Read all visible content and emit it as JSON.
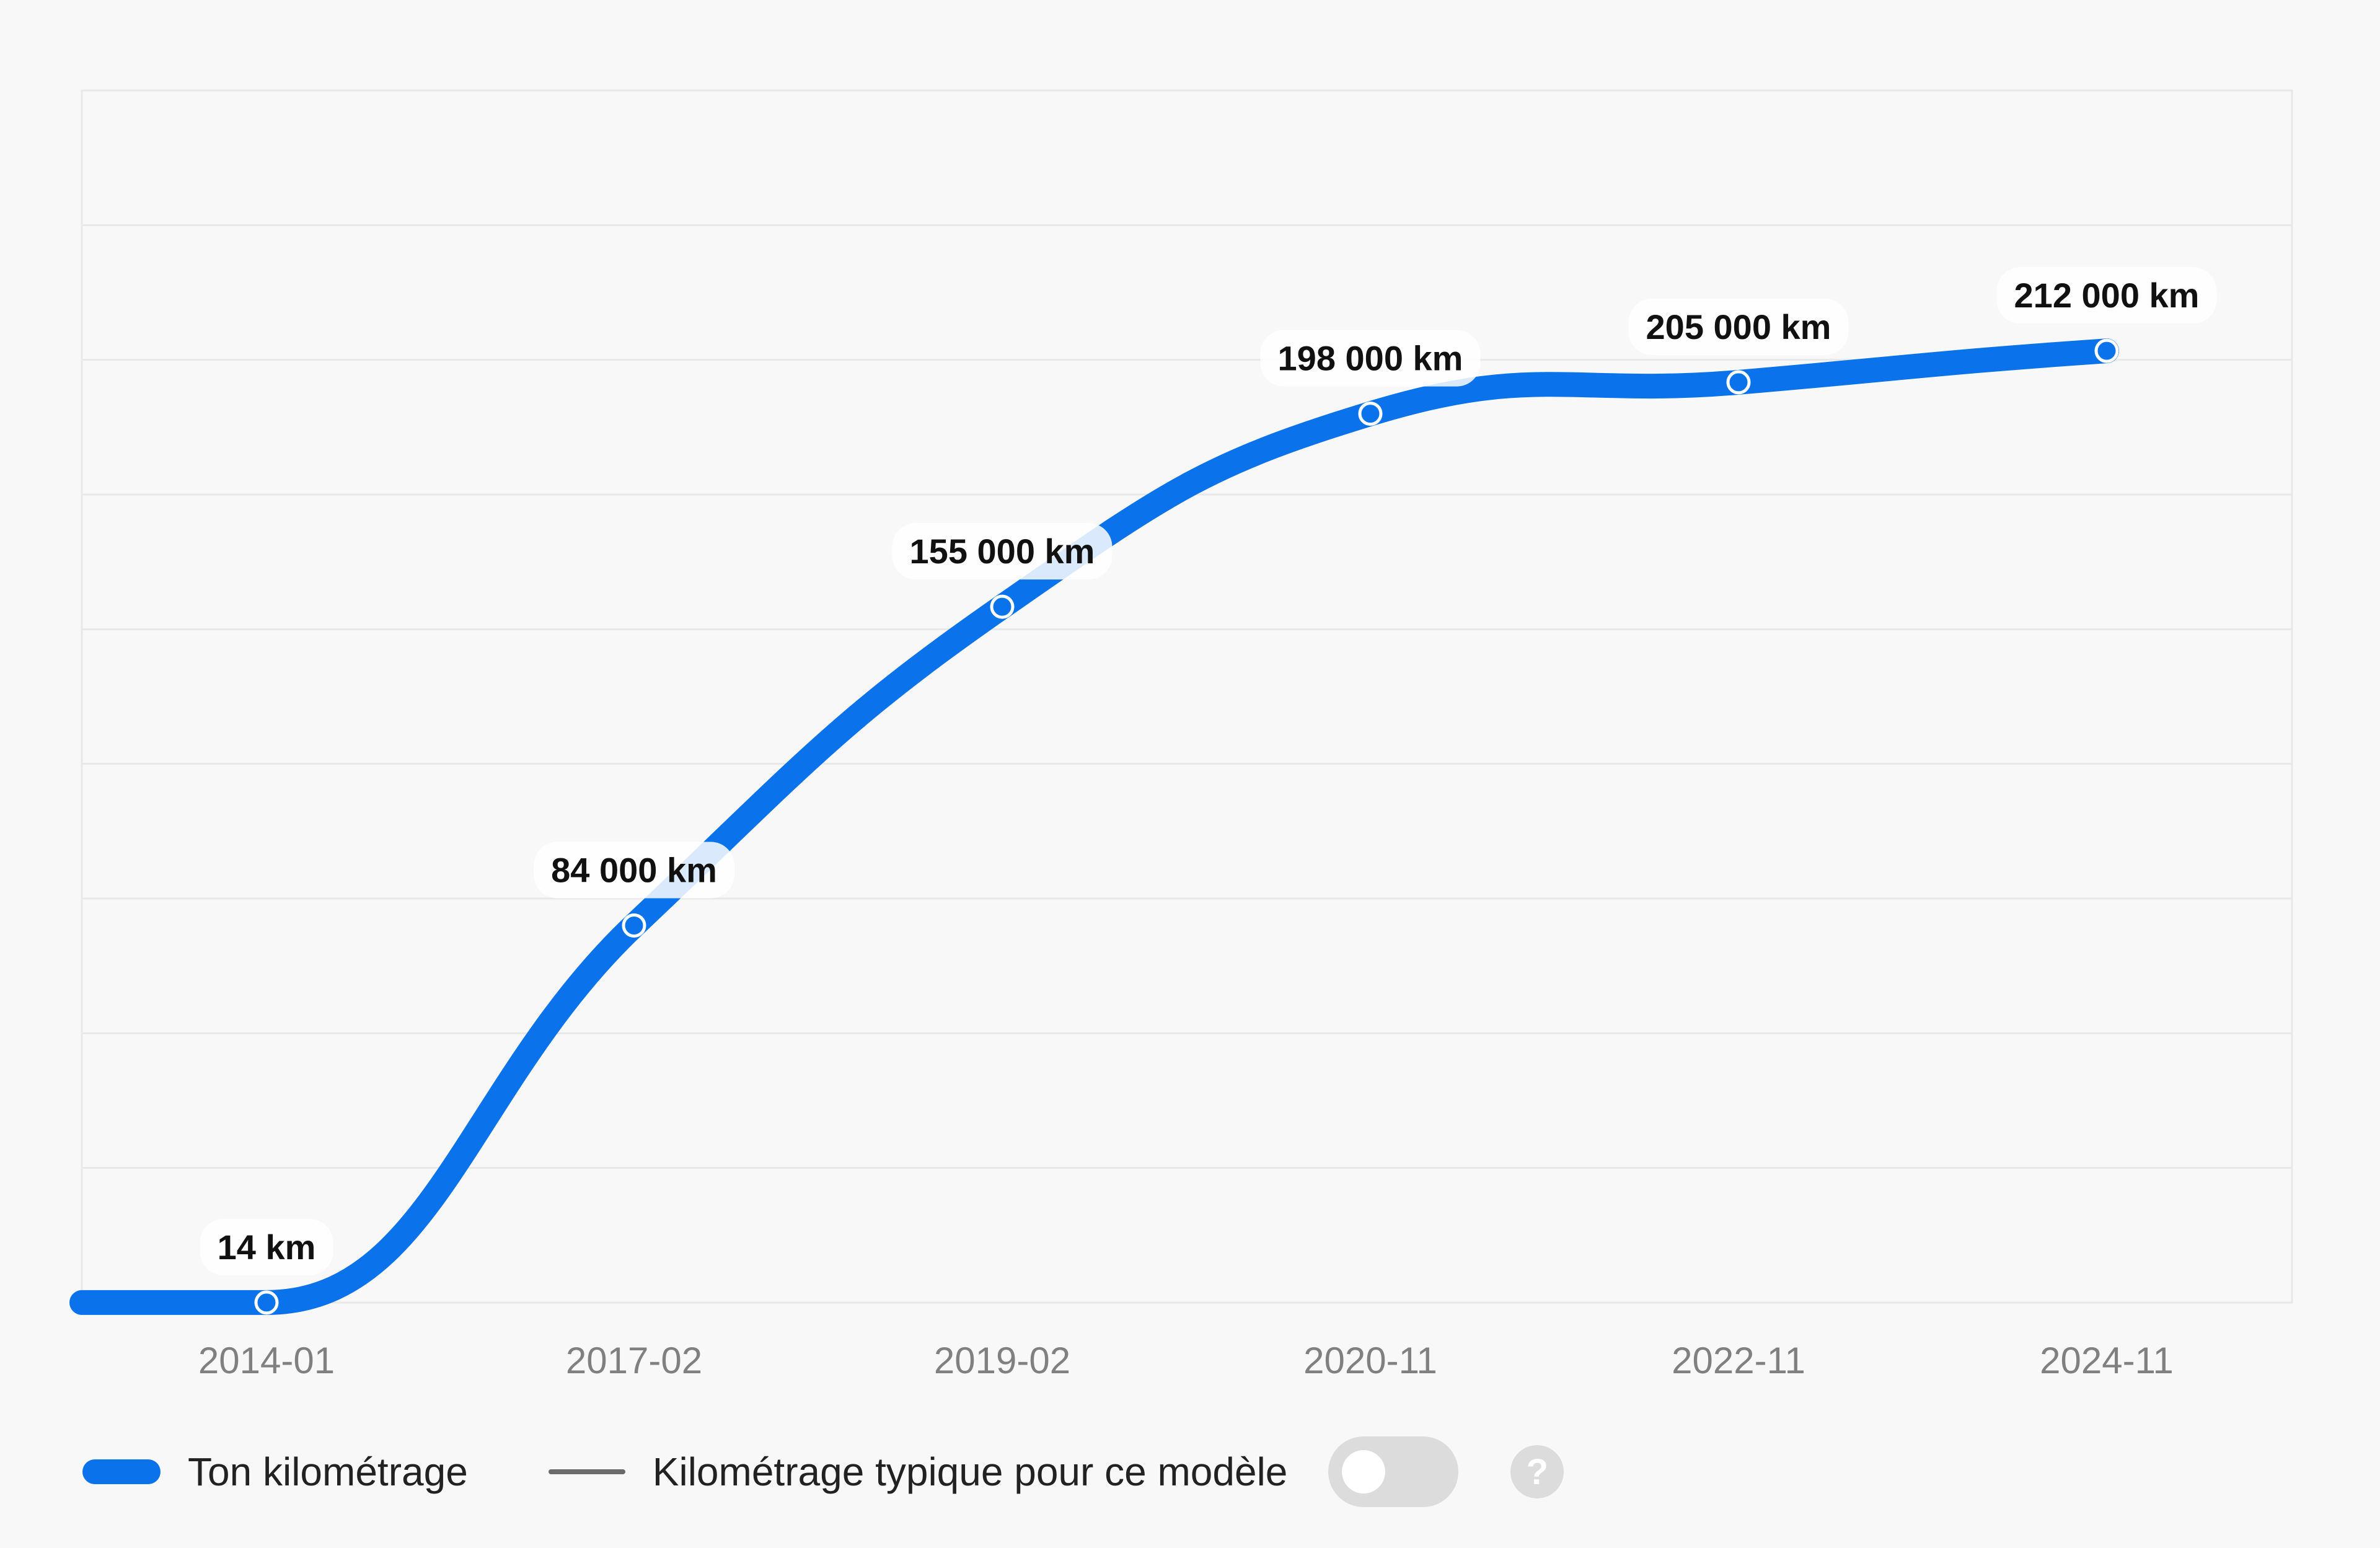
{
  "chart_data": {
    "type": "line",
    "x": [
      "2014-01",
      "2017-02",
      "2019-02",
      "2020-11",
      "2022-11",
      "2024-11"
    ],
    "series": [
      {
        "name": "Ton kilométrage",
        "values": [
          14,
          84000,
          155000,
          198000,
          205000,
          212000
        ],
        "labels": [
          "14 km",
          "84 000 km",
          "155 000 km",
          "198 000 km",
          "205 000 km",
          "212 000 km"
        ],
        "color": "#0a73eb"
      }
    ],
    "ylim": [
      0,
      270000
    ],
    "grid": true,
    "legend_position": "bottom-left"
  },
  "legend": {
    "your_mileage_label": "Ton kilométrage",
    "typical_mileage_label": "Kilométrage typique pour ce modèle",
    "help_symbol": "?"
  },
  "colors": {
    "line": "#0a73eb",
    "grid": "#e8e8e8",
    "background": "#f8f8f8",
    "typical_line": "#6b6b6b"
  },
  "toggle": {
    "state": "off"
  },
  "icons": {
    "help": "question-mark-circle-icon"
  }
}
